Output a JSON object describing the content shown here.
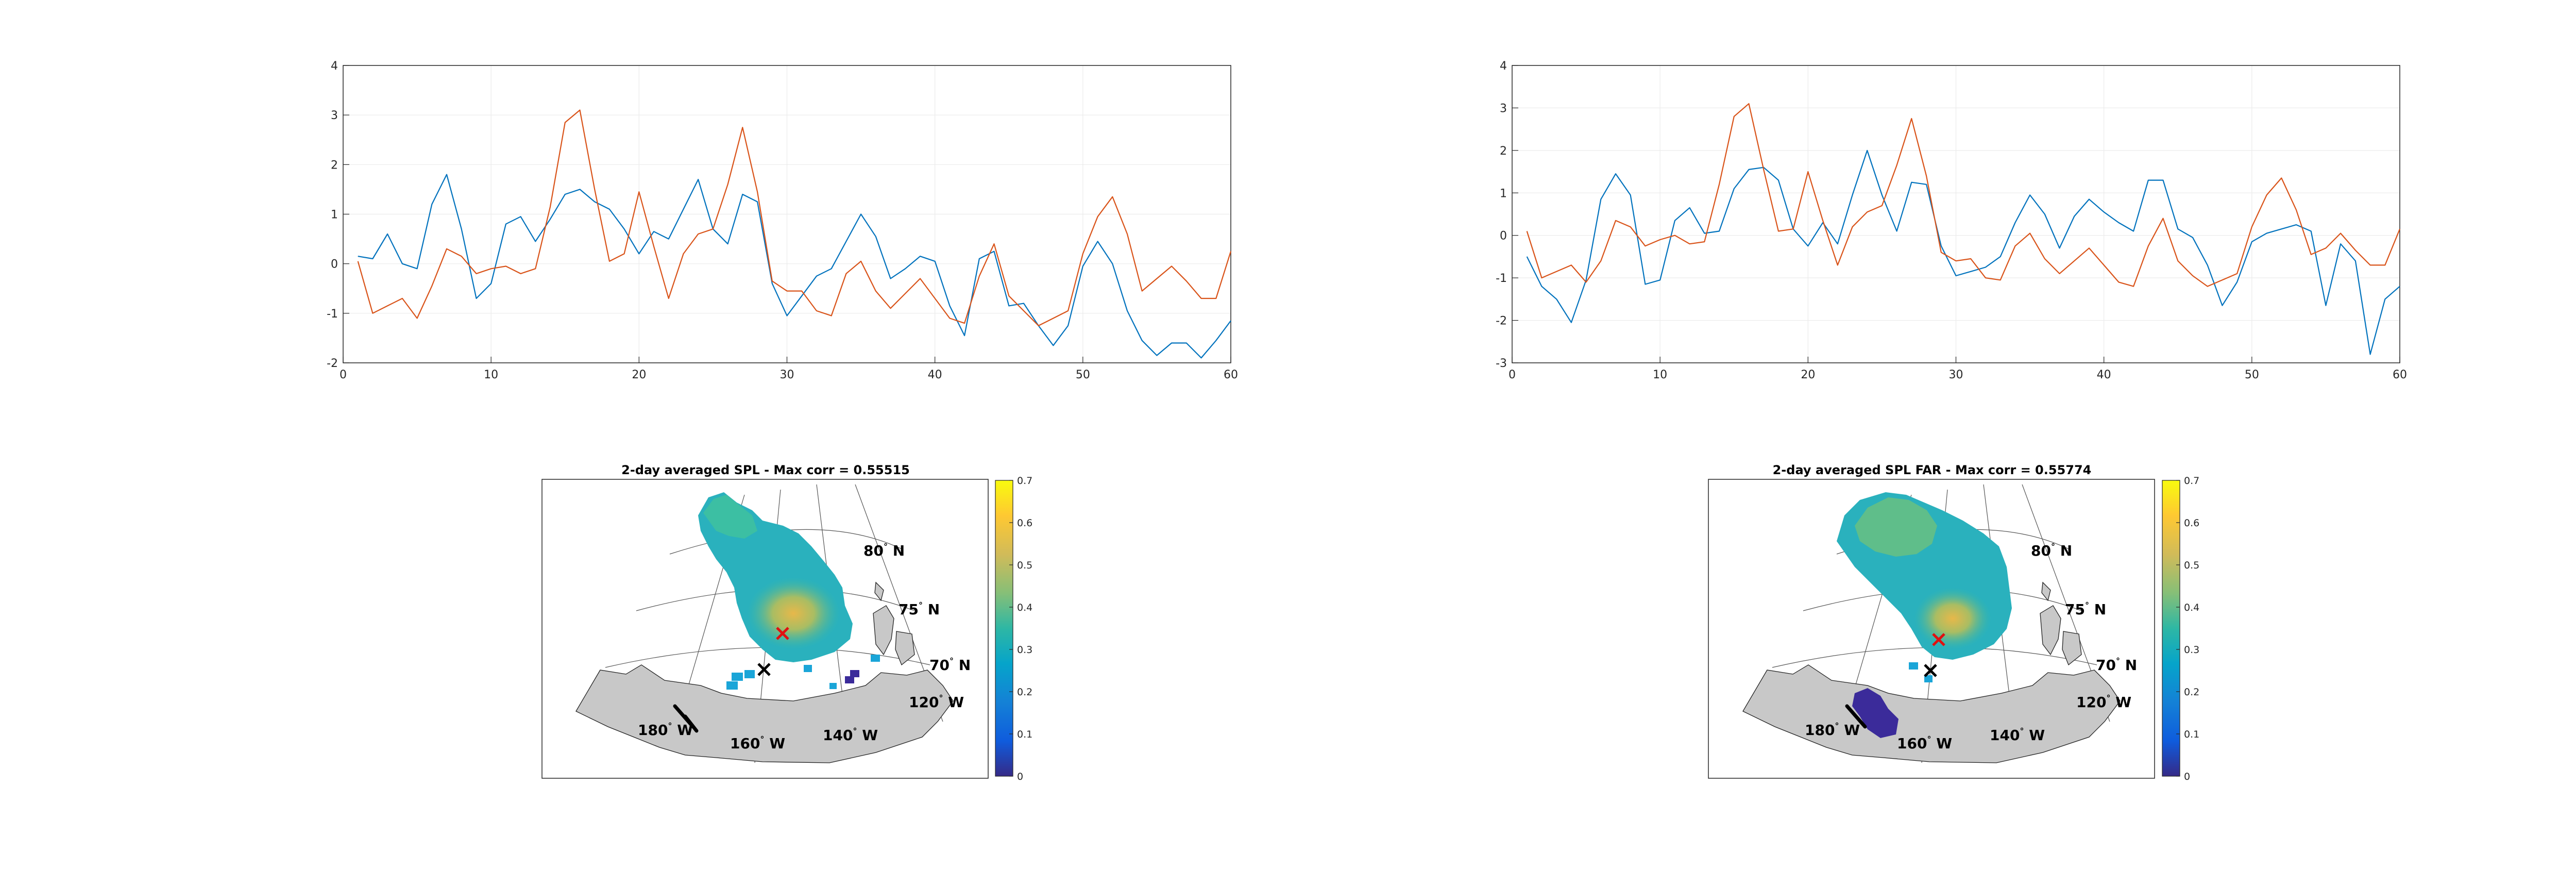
{
  "chart_data": [
    {
      "type": "line",
      "title": "",
      "xlabel": "",
      "ylabel": "",
      "xlim": [
        0,
        60
      ],
      "ylim": [
        -2,
        4
      ],
      "xticks": [
        "0",
        "10",
        "20",
        "30",
        "40",
        "50",
        "60"
      ],
      "yticks": [
        "-2",
        "-1",
        "0",
        "1",
        "2",
        "3",
        "4"
      ],
      "grid": true,
      "series": [
        {
          "color": "#0072BD",
          "x": [
            1,
            2,
            3,
            4,
            5,
            6,
            7,
            8,
            9,
            10,
            11,
            12,
            13,
            14,
            15,
            16,
            17,
            18,
            19,
            20,
            21,
            22,
            23,
            24,
            25,
            26,
            27,
            28,
            29,
            30,
            31,
            32,
            33,
            34,
            35,
            36,
            37,
            38,
            39,
            40,
            41,
            42,
            43,
            44,
            45,
            46,
            47,
            48,
            49,
            50,
            51,
            52,
            53,
            54,
            55,
            56,
            57,
            58,
            59,
            60
          ],
          "values": [
            0.15,
            0.1,
            0.6,
            0.0,
            -0.1,
            1.2,
            1.8,
            0.7,
            -0.7,
            -0.4,
            0.8,
            0.95,
            0.45,
            0.9,
            1.4,
            1.5,
            1.25,
            1.1,
            0.7,
            0.2,
            0.65,
            0.5,
            1.1,
            1.7,
            0.7,
            0.4,
            1.4,
            1.25,
            -0.4,
            -1.05,
            -0.65,
            -0.25,
            -0.1,
            0.45,
            1.0,
            0.55,
            -0.3,
            -0.1,
            0.15,
            0.05,
            -0.85,
            -1.45,
            0.1,
            0.25,
            -0.85,
            -0.8,
            -1.25,
            -1.65,
            -1.25,
            -0.05,
            0.45,
            0.0,
            -0.95,
            -1.55,
            -1.85,
            -1.6,
            -1.6,
            -1.9,
            -1.55,
            -1.15
          ]
        },
        {
          "color": "#D95319",
          "x": [
            1,
            2,
            3,
            4,
            5,
            6,
            7,
            8,
            9,
            10,
            11,
            12,
            13,
            14,
            15,
            16,
            17,
            18,
            19,
            20,
            21,
            22,
            23,
            24,
            25,
            26,
            27,
            28,
            29,
            30,
            31,
            32,
            33,
            34,
            35,
            36,
            37,
            38,
            39,
            40,
            41,
            42,
            43,
            44,
            45,
            46,
            47,
            48,
            49,
            50,
            51,
            52,
            53,
            54,
            55,
            56,
            57,
            58,
            59,
            60
          ],
          "values": [
            0.05,
            -1.0,
            -0.85,
            -0.7,
            -1.1,
            -0.45,
            0.3,
            0.15,
            -0.2,
            -0.1,
            -0.05,
            -0.2,
            -0.1,
            1.15,
            2.85,
            3.1,
            1.5,
            0.05,
            0.2,
            1.45,
            0.35,
            -0.7,
            0.2,
            0.6,
            0.7,
            1.6,
            2.75,
            1.45,
            -0.35,
            -0.55,
            -0.55,
            -0.95,
            -1.05,
            -0.2,
            0.05,
            -0.55,
            -0.9,
            -0.6,
            -0.3,
            -0.7,
            -1.1,
            -1.2,
            -0.25,
            0.4,
            -0.65,
            -0.95,
            -1.25,
            -1.1,
            -0.95,
            0.2,
            0.95,
            1.35,
            0.6,
            -0.55,
            -0.3,
            -0.05,
            -0.35,
            -0.7,
            -0.7,
            0.25
          ]
        }
      ]
    },
    {
      "type": "line",
      "title": "",
      "xlabel": "",
      "ylabel": "",
      "xlim": [
        0,
        60
      ],
      "ylim": [
        -3,
        4
      ],
      "xticks": [
        "0",
        "10",
        "20",
        "30",
        "40",
        "50",
        "60"
      ],
      "yticks": [
        "-3",
        "-2",
        "-1",
        "0",
        "1",
        "2",
        "3",
        "4"
      ],
      "grid": true,
      "series": [
        {
          "color": "#0072BD",
          "x": [
            1,
            2,
            3,
            4,
            5,
            6,
            7,
            8,
            9,
            10,
            11,
            12,
            13,
            14,
            15,
            16,
            17,
            18,
            19,
            20,
            21,
            22,
            23,
            24,
            25,
            26,
            27,
            28,
            29,
            30,
            31,
            32,
            33,
            34,
            35,
            36,
            37,
            38,
            39,
            40,
            41,
            42,
            43,
            44,
            45,
            46,
            47,
            48,
            49,
            50,
            51,
            52,
            53,
            54,
            55,
            56,
            57,
            58,
            59,
            60
          ],
          "values": [
            -0.5,
            -1.2,
            -1.5,
            -2.05,
            -1.05,
            0.85,
            1.45,
            0.95,
            -1.15,
            -1.05,
            0.35,
            0.65,
            0.05,
            0.1,
            1.1,
            1.55,
            1.6,
            1.3,
            0.15,
            -0.25,
            0.3,
            -0.2,
            0.95,
            2.0,
            0.95,
            0.1,
            1.25,
            1.2,
            -0.25,
            -0.95,
            -0.85,
            -0.75,
            -0.5,
            0.3,
            0.95,
            0.5,
            -0.3,
            0.45,
            0.85,
            0.55,
            0.3,
            0.1,
            1.3,
            1.3,
            0.15,
            -0.05,
            -0.7,
            -1.65,
            -1.1,
            -0.15,
            0.05,
            0.15,
            0.25,
            0.1,
            -1.65,
            -0.2,
            -0.6,
            -2.8,
            -1.5,
            -1.2
          ]
        },
        {
          "color": "#D95319",
          "x": [
            1,
            2,
            3,
            4,
            5,
            6,
            7,
            8,
            9,
            10,
            11,
            12,
            13,
            14,
            15,
            16,
            17,
            18,
            19,
            20,
            21,
            22,
            23,
            24,
            25,
            26,
            27,
            28,
            29,
            30,
            31,
            32,
            33,
            34,
            35,
            36,
            37,
            38,
            39,
            40,
            41,
            42,
            43,
            44,
            45,
            46,
            47,
            48,
            49,
            50,
            51,
            52,
            53,
            54,
            55,
            56,
            57,
            58,
            59,
            60
          ],
          "values": [
            0.1,
            -1.0,
            -0.85,
            -0.7,
            -1.1,
            -0.6,
            0.35,
            0.2,
            -0.25,
            -0.1,
            0.0,
            -0.2,
            -0.15,
            1.2,
            2.8,
            3.1,
            1.55,
            0.1,
            0.15,
            1.5,
            0.35,
            -0.7,
            0.2,
            0.55,
            0.7,
            1.65,
            2.75,
            1.4,
            -0.4,
            -0.6,
            -0.55,
            -1.0,
            -1.05,
            -0.25,
            0.05,
            -0.55,
            -0.9,
            -0.6,
            -0.3,
            -0.7,
            -1.1,
            -1.2,
            -0.25,
            0.4,
            -0.6,
            -0.95,
            -1.2,
            -1.05,
            -0.9,
            0.2,
            0.95,
            1.35,
            0.6,
            -0.45,
            -0.3,
            0.05,
            -0.35,
            -0.7,
            -0.7,
            0.15
          ]
        }
      ]
    },
    {
      "type": "heatmap",
      "title": "2-day averaged SPL - Max corr = 0.55515",
      "colorbar": {
        "min": 0,
        "max": 0.7,
        "ticks": [
          "0",
          "0.1",
          "0.2",
          "0.3",
          "0.4",
          "0.5",
          "0.6",
          "0.7"
        ]
      },
      "colormap": "parula",
      "lat_labels": [
        "80",
        "75",
        "70"
      ],
      "lat_unit": "N",
      "lon_labels": [
        "180",
        "160",
        "140",
        "120"
      ],
      "lon_unit": "W",
      "markers": [
        {
          "symbol": "x",
          "color": "#ff0000"
        },
        {
          "symbol": "x",
          "color": "#000000"
        }
      ]
    },
    {
      "type": "heatmap",
      "title": "2-day averaged SPL FAR - Max corr = 0.55774",
      "colorbar": {
        "min": 0,
        "max": 0.7,
        "ticks": [
          "0",
          "0.1",
          "0.2",
          "0.3",
          "0.4",
          "0.5",
          "0.6",
          "0.7"
        ]
      },
      "colormap": "parula",
      "lat_labels": [
        "80",
        "75",
        "70"
      ],
      "lat_unit": "N",
      "lon_labels": [
        "180",
        "160",
        "140",
        "120"
      ],
      "lon_unit": "W",
      "markers": [
        {
          "symbol": "x",
          "color": "#ff0000"
        },
        {
          "symbol": "x",
          "color": "#000000"
        }
      ]
    }
  ]
}
